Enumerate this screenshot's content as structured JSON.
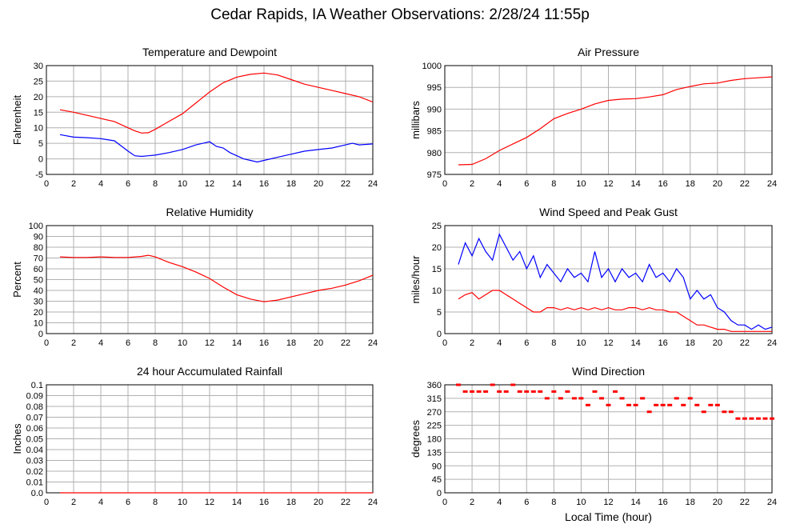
{
  "title": "Cedar Rapids, IA Weather Observations: 2/28/24 11:55p",
  "chart_data": [
    {
      "type": "line",
      "title": "Temperature and Dewpoint",
      "xlabel": "",
      "ylabel": "Fahrenheit",
      "xlim": [
        0,
        24
      ],
      "ylim": [
        -5,
        30
      ],
      "yticks": [
        -5,
        0,
        5,
        10,
        15,
        20,
        25,
        30
      ],
      "xticks": [
        0,
        2,
        4,
        6,
        8,
        10,
        12,
        14,
        16,
        18,
        20,
        22,
        24
      ],
      "grid": true,
      "series": [
        {
          "color": "#ff0000",
          "x": [
            1,
            2,
            3,
            4,
            5,
            6,
            6.5,
            7,
            7.5,
            8,
            9,
            10,
            11,
            12,
            13,
            14,
            15,
            16,
            17,
            18,
            19,
            20,
            21,
            22,
            23,
            24
          ],
          "values": [
            15.8,
            15,
            14,
            13,
            12,
            10,
            9,
            8.3,
            8.4,
            9.5,
            12,
            14.5,
            18,
            21.5,
            24.5,
            26.3,
            27.2,
            27.6,
            27,
            25.5,
            24,
            23,
            22,
            21,
            20,
            18.3
          ]
        },
        {
          "color": "#0000ff",
          "x": [
            1,
            2,
            3,
            4,
            5,
            6,
            6.5,
            7,
            7.5,
            8,
            9,
            10,
            11,
            12,
            12.5,
            13,
            13.5,
            14,
            14.5,
            15,
            15.5,
            16,
            17,
            18,
            19,
            20,
            21,
            22,
            22.5,
            23,
            24
          ],
          "values": [
            7.8,
            7,
            6.8,
            6.5,
            5.8,
            2.5,
            1,
            0.8,
            1,
            1.2,
            2,
            3,
            4.5,
            5.5,
            4,
            3.5,
            2,
            1,
            0,
            -0.5,
            -1,
            -0.5,
            0.5,
            1.5,
            2.5,
            3,
            3.5,
            4.5,
            5,
            4.5,
            4.8
          ]
        }
      ]
    },
    {
      "type": "line",
      "title": "Air Pressure",
      "xlabel": "",
      "ylabel": "millibars",
      "xlim": [
        0,
        24
      ],
      "ylim": [
        975,
        1000
      ],
      "yticks": [
        975,
        980,
        985,
        990,
        995,
        1000
      ],
      "xticks": [
        0,
        2,
        4,
        6,
        8,
        10,
        12,
        14,
        16,
        18,
        20,
        22,
        24
      ],
      "grid": true,
      "series": [
        {
          "color": "#ff0000",
          "x": [
            1,
            2,
            3,
            4,
            5,
            6,
            7,
            8,
            9,
            10,
            11,
            12,
            13,
            14,
            15,
            16,
            17,
            18,
            19,
            20,
            21,
            22,
            23,
            24
          ],
          "values": [
            977.2,
            977.3,
            978.6,
            980.5,
            982,
            983.5,
            985.5,
            987.8,
            989,
            990,
            991.2,
            992,
            992.3,
            992.4,
            992.8,
            993.3,
            994.5,
            995.2,
            995.8,
            996,
            996.6,
            997,
            997.2,
            997.4
          ]
        }
      ]
    },
    {
      "type": "line",
      "title": "Relative Humidity",
      "xlabel": "",
      "ylabel": "Percent",
      "xlim": [
        0,
        24
      ],
      "ylim": [
        0,
        100
      ],
      "yticks": [
        0,
        10,
        20,
        30,
        40,
        50,
        60,
        70,
        80,
        90,
        100
      ],
      "xticks": [
        0,
        2,
        4,
        6,
        8,
        10,
        12,
        14,
        16,
        18,
        20,
        22,
        24
      ],
      "grid": true,
      "series": [
        {
          "color": "#ff0000",
          "x": [
            1,
            2,
            3,
            4,
            5,
            6,
            7,
            7.5,
            8,
            9,
            10,
            11,
            12,
            13,
            14,
            15,
            16,
            17,
            18,
            19,
            20,
            21,
            22,
            23,
            24
          ],
          "values": [
            71,
            70.5,
            70.5,
            71,
            70.5,
            70.5,
            71.5,
            72.5,
            71,
            66,
            62,
            57,
            51,
            43,
            36,
            32,
            29.5,
            31,
            34,
            37,
            40,
            42,
            45,
            49,
            54
          ]
        }
      ]
    },
    {
      "type": "line",
      "title": "Wind Speed and Peak Gust",
      "xlabel": "",
      "ylabel": "miles/hour",
      "xlim": [
        0,
        24
      ],
      "ylim": [
        0,
        25
      ],
      "yticks": [
        0,
        5,
        10,
        15,
        20,
        25
      ],
      "xticks": [
        0,
        2,
        4,
        6,
        8,
        10,
        12,
        14,
        16,
        18,
        20,
        22,
        24
      ],
      "grid": true,
      "series": [
        {
          "color": "#0000ff",
          "x": [
            1,
            1.5,
            2,
            2.5,
            3,
            3.5,
            4,
            4.5,
            5,
            5.5,
            6,
            6.5,
            7,
            7.5,
            8,
            8.5,
            9,
            9.5,
            10,
            10.5,
            11,
            11.5,
            12,
            12.5,
            13,
            13.5,
            14,
            14.5,
            15,
            15.5,
            16,
            16.5,
            17,
            17.5,
            18,
            18.5,
            19,
            19.5,
            20,
            20.5,
            21,
            21.5,
            22,
            22.5,
            23,
            23.5,
            24
          ],
          "values": [
            16,
            21,
            18,
            22,
            19,
            17,
            23,
            20,
            17,
            19,
            15,
            18,
            13,
            16,
            14,
            12,
            15,
            13,
            14,
            12,
            19,
            13,
            15,
            12,
            15,
            13,
            14,
            12,
            16,
            13,
            14,
            12,
            15,
            13,
            8,
            10,
            8,
            9,
            6,
            5,
            3,
            2,
            2,
            1,
            2,
            1,
            1.5
          ]
        },
        {
          "color": "#ff0000",
          "x": [
            1,
            1.5,
            2,
            2.5,
            3,
            3.5,
            4,
            4.5,
            5,
            5.5,
            6,
            6.5,
            7,
            7.5,
            8,
            8.5,
            9,
            9.5,
            10,
            10.5,
            11,
            11.5,
            12,
            12.5,
            13,
            13.5,
            14,
            14.5,
            15,
            15.5,
            16,
            16.5,
            17,
            17.5,
            18,
            18.5,
            19,
            19.5,
            20,
            20.5,
            21,
            21.5,
            22,
            22.5,
            23,
            23.5,
            24
          ],
          "values": [
            8,
            9,
            9.5,
            8,
            9,
            10,
            10,
            9,
            8,
            7,
            6,
            5,
            5,
            6,
            6,
            5.5,
            6,
            5.5,
            6,
            5.5,
            6,
            5.5,
            6,
            5.5,
            5.5,
            6,
            6,
            5.5,
            6,
            5.5,
            5.5,
            5,
            5,
            4,
            3,
            2,
            2,
            1.5,
            1,
            1,
            0.5,
            0.5,
            0.5,
            0.5,
            0.5,
            0.5,
            0.5
          ]
        }
      ]
    },
    {
      "type": "line",
      "title": "24 hour Accumulated Rainfall",
      "xlabel": "",
      "ylabel": "Inches",
      "xlim": [
        0,
        24
      ],
      "ylim": [
        0,
        0.1
      ],
      "yticks": [
        0,
        0.01,
        0.02,
        0.03,
        0.04,
        0.05,
        0.06,
        0.07,
        0.08,
        0.09,
        0.1
      ],
      "ytick_labels": [
        "0.0",
        "0.01",
        "0.02",
        "0.03",
        "0.04",
        "0.05",
        "0.06",
        "0.07",
        "0.08",
        "0.09",
        "0.1"
      ],
      "xticks": [
        0,
        2,
        4,
        6,
        8,
        10,
        12,
        14,
        16,
        18,
        20,
        22,
        24
      ],
      "grid": true,
      "series": [
        {
          "color": "#ff0000",
          "x": [
            1,
            24
          ],
          "values": [
            0,
            0
          ]
        }
      ]
    },
    {
      "type": "scatter",
      "title": "Wind Direction",
      "xlabel": "Local Time (hour)",
      "ylabel": "degrees",
      "xlim": [
        0,
        24
      ],
      "ylim": [
        0,
        360
      ],
      "yticks": [
        0,
        45,
        90,
        135,
        180,
        225,
        270,
        315,
        360
      ],
      "xticks": [
        0,
        2,
        4,
        6,
        8,
        10,
        12,
        14,
        16,
        18,
        20,
        22,
        24
      ],
      "grid": true,
      "series": [
        {
          "color": "#ff0000",
          "x": [
            1,
            1.5,
            2,
            2.5,
            3,
            3.5,
            4,
            4.5,
            5,
            5.5,
            6,
            6.5,
            7,
            7.5,
            8,
            8.5,
            9,
            9.5,
            10,
            10.5,
            11,
            11.5,
            12,
            12.5,
            13,
            13.5,
            14,
            14.5,
            15,
            15.5,
            16,
            16.5,
            17,
            17.5,
            18,
            18.5,
            19,
            19.5,
            20,
            20.5,
            21,
            21.5,
            22,
            22.5,
            23,
            23.5,
            24
          ],
          "values": [
            360,
            337.5,
            337.5,
            337.5,
            337.5,
            360,
            337.5,
            337.5,
            360,
            337.5,
            337.5,
            337.5,
            337.5,
            315,
            337.5,
            315,
            337.5,
            315,
            315,
            292.5,
            337.5,
            315,
            292.5,
            337.5,
            315,
            292.5,
            292.5,
            315,
            270,
            292.5,
            292.5,
            292.5,
            315,
            292.5,
            315,
            292.5,
            270,
            292.5,
            292.5,
            270,
            270,
            247.5,
            247.5,
            247.5,
            247.5,
            247.5,
            247.5
          ]
        }
      ]
    }
  ]
}
